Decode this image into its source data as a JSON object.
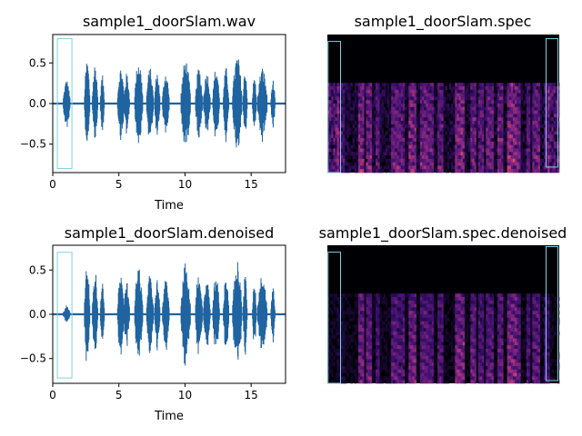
{
  "colors": {
    "waveform": "#1f64a0",
    "highlight": "#7fd3e0",
    "axis": "#000000",
    "spectrogram_colormap": "magma"
  },
  "chart_data": [
    {
      "id": "wave-original",
      "type": "line",
      "title": "sample1_doorSlam.wav",
      "xlabel": "Time",
      "ylabel": "",
      "xlim": [
        0,
        17.6
      ],
      "ylim": [
        -0.85,
        0.85
      ],
      "xticks": [
        0,
        5,
        10,
        15
      ],
      "yticks": [
        -0.5,
        0.0,
        0.5
      ],
      "xtick_labels": [
        "0",
        "5",
        "10",
        "15"
      ],
      "ytick_labels": [
        "−0.5",
        "0.0",
        "0.5"
      ],
      "grid": false,
      "bursts": [
        [
          0.8,
          1.3,
          0.3
        ],
        [
          2.4,
          2.8,
          0.55
        ],
        [
          3.0,
          3.4,
          0.5
        ],
        [
          3.6,
          3.9,
          0.35
        ],
        [
          4.9,
          5.4,
          0.45
        ],
        [
          5.4,
          5.8,
          0.38
        ],
        [
          6.2,
          6.8,
          0.55
        ],
        [
          7.1,
          7.6,
          0.45
        ],
        [
          7.7,
          8.1,
          0.4
        ],
        [
          8.3,
          8.8,
          0.4
        ],
        [
          9.7,
          10.4,
          0.55
        ],
        [
          10.8,
          11.3,
          0.45
        ],
        [
          11.4,
          11.9,
          0.4
        ],
        [
          12.1,
          12.6,
          0.45
        ],
        [
          12.9,
          13.3,
          0.45
        ],
        [
          13.6,
          14.3,
          0.6
        ],
        [
          14.4,
          14.7,
          0.45
        ],
        [
          15.1,
          15.4,
          0.35
        ],
        [
          15.5,
          16.2,
          0.45
        ],
        [
          16.5,
          16.8,
          0.3
        ]
      ],
      "highlight_box": {
        "x0": 0.35,
        "x1": 1.45,
        "y0": -0.8,
        "y1": 0.8
      }
    },
    {
      "id": "spec-original",
      "type": "heatmap",
      "title": "sample1_doorSlam.spec",
      "xlim": [
        0,
        17.6
      ],
      "axes_visible": false,
      "highlight_boxes": [
        {
          "x0": 0.05,
          "x1": 1.0,
          "f0": 0.0,
          "f1": 0.95
        },
        {
          "x0": 16.6,
          "x1": 17.5,
          "f0": 0.04,
          "f1": 0.97
        }
      ]
    },
    {
      "id": "wave-denoised",
      "type": "line",
      "title": "sample1_doorSlam.denoised",
      "xlabel": "Time",
      "ylabel": "",
      "xlim": [
        0,
        17.6
      ],
      "ylim": [
        -0.78,
        0.78
      ],
      "xticks": [
        0,
        5,
        10,
        15
      ],
      "yticks": [
        -0.5,
        0.0,
        0.5
      ],
      "xtick_labels": [
        "0",
        "5",
        "10",
        "15"
      ],
      "ytick_labels": [
        "−0.5",
        "0.0",
        "0.5"
      ],
      "grid": false,
      "bursts": [
        [
          0.8,
          1.3,
          0.1
        ],
        [
          2.4,
          2.8,
          0.55
        ],
        [
          3.0,
          3.4,
          0.5
        ],
        [
          3.6,
          3.9,
          0.35
        ],
        [
          4.9,
          5.4,
          0.45
        ],
        [
          5.4,
          5.8,
          0.38
        ],
        [
          6.2,
          6.8,
          0.55
        ],
        [
          7.1,
          7.6,
          0.45
        ],
        [
          7.7,
          8.1,
          0.4
        ],
        [
          8.3,
          8.8,
          0.4
        ],
        [
          9.7,
          10.4,
          0.6
        ],
        [
          10.8,
          11.3,
          0.5
        ],
        [
          11.4,
          11.9,
          0.4
        ],
        [
          12.1,
          12.6,
          0.45
        ],
        [
          12.9,
          13.3,
          0.45
        ],
        [
          13.6,
          14.3,
          0.6
        ],
        [
          14.4,
          14.7,
          0.45
        ],
        [
          15.1,
          15.4,
          0.35
        ],
        [
          15.5,
          16.2,
          0.45
        ],
        [
          16.5,
          16.8,
          0.3
        ]
      ],
      "highlight_box": {
        "x0": 0.35,
        "x1": 1.45,
        "y0": -0.72,
        "y1": 0.7
      }
    },
    {
      "id": "spec-denoised",
      "type": "heatmap",
      "title": "sample1_doorSlam.spec.denoised",
      "xlim": [
        0,
        17.6
      ],
      "axes_visible": false,
      "highlight_boxes": [
        {
          "x0": 0.05,
          "x1": 1.0,
          "f0": 0.0,
          "f1": 0.95
        },
        {
          "x0": 16.6,
          "x1": 17.5,
          "f0": 0.02,
          "f1": 0.99
        }
      ]
    }
  ]
}
